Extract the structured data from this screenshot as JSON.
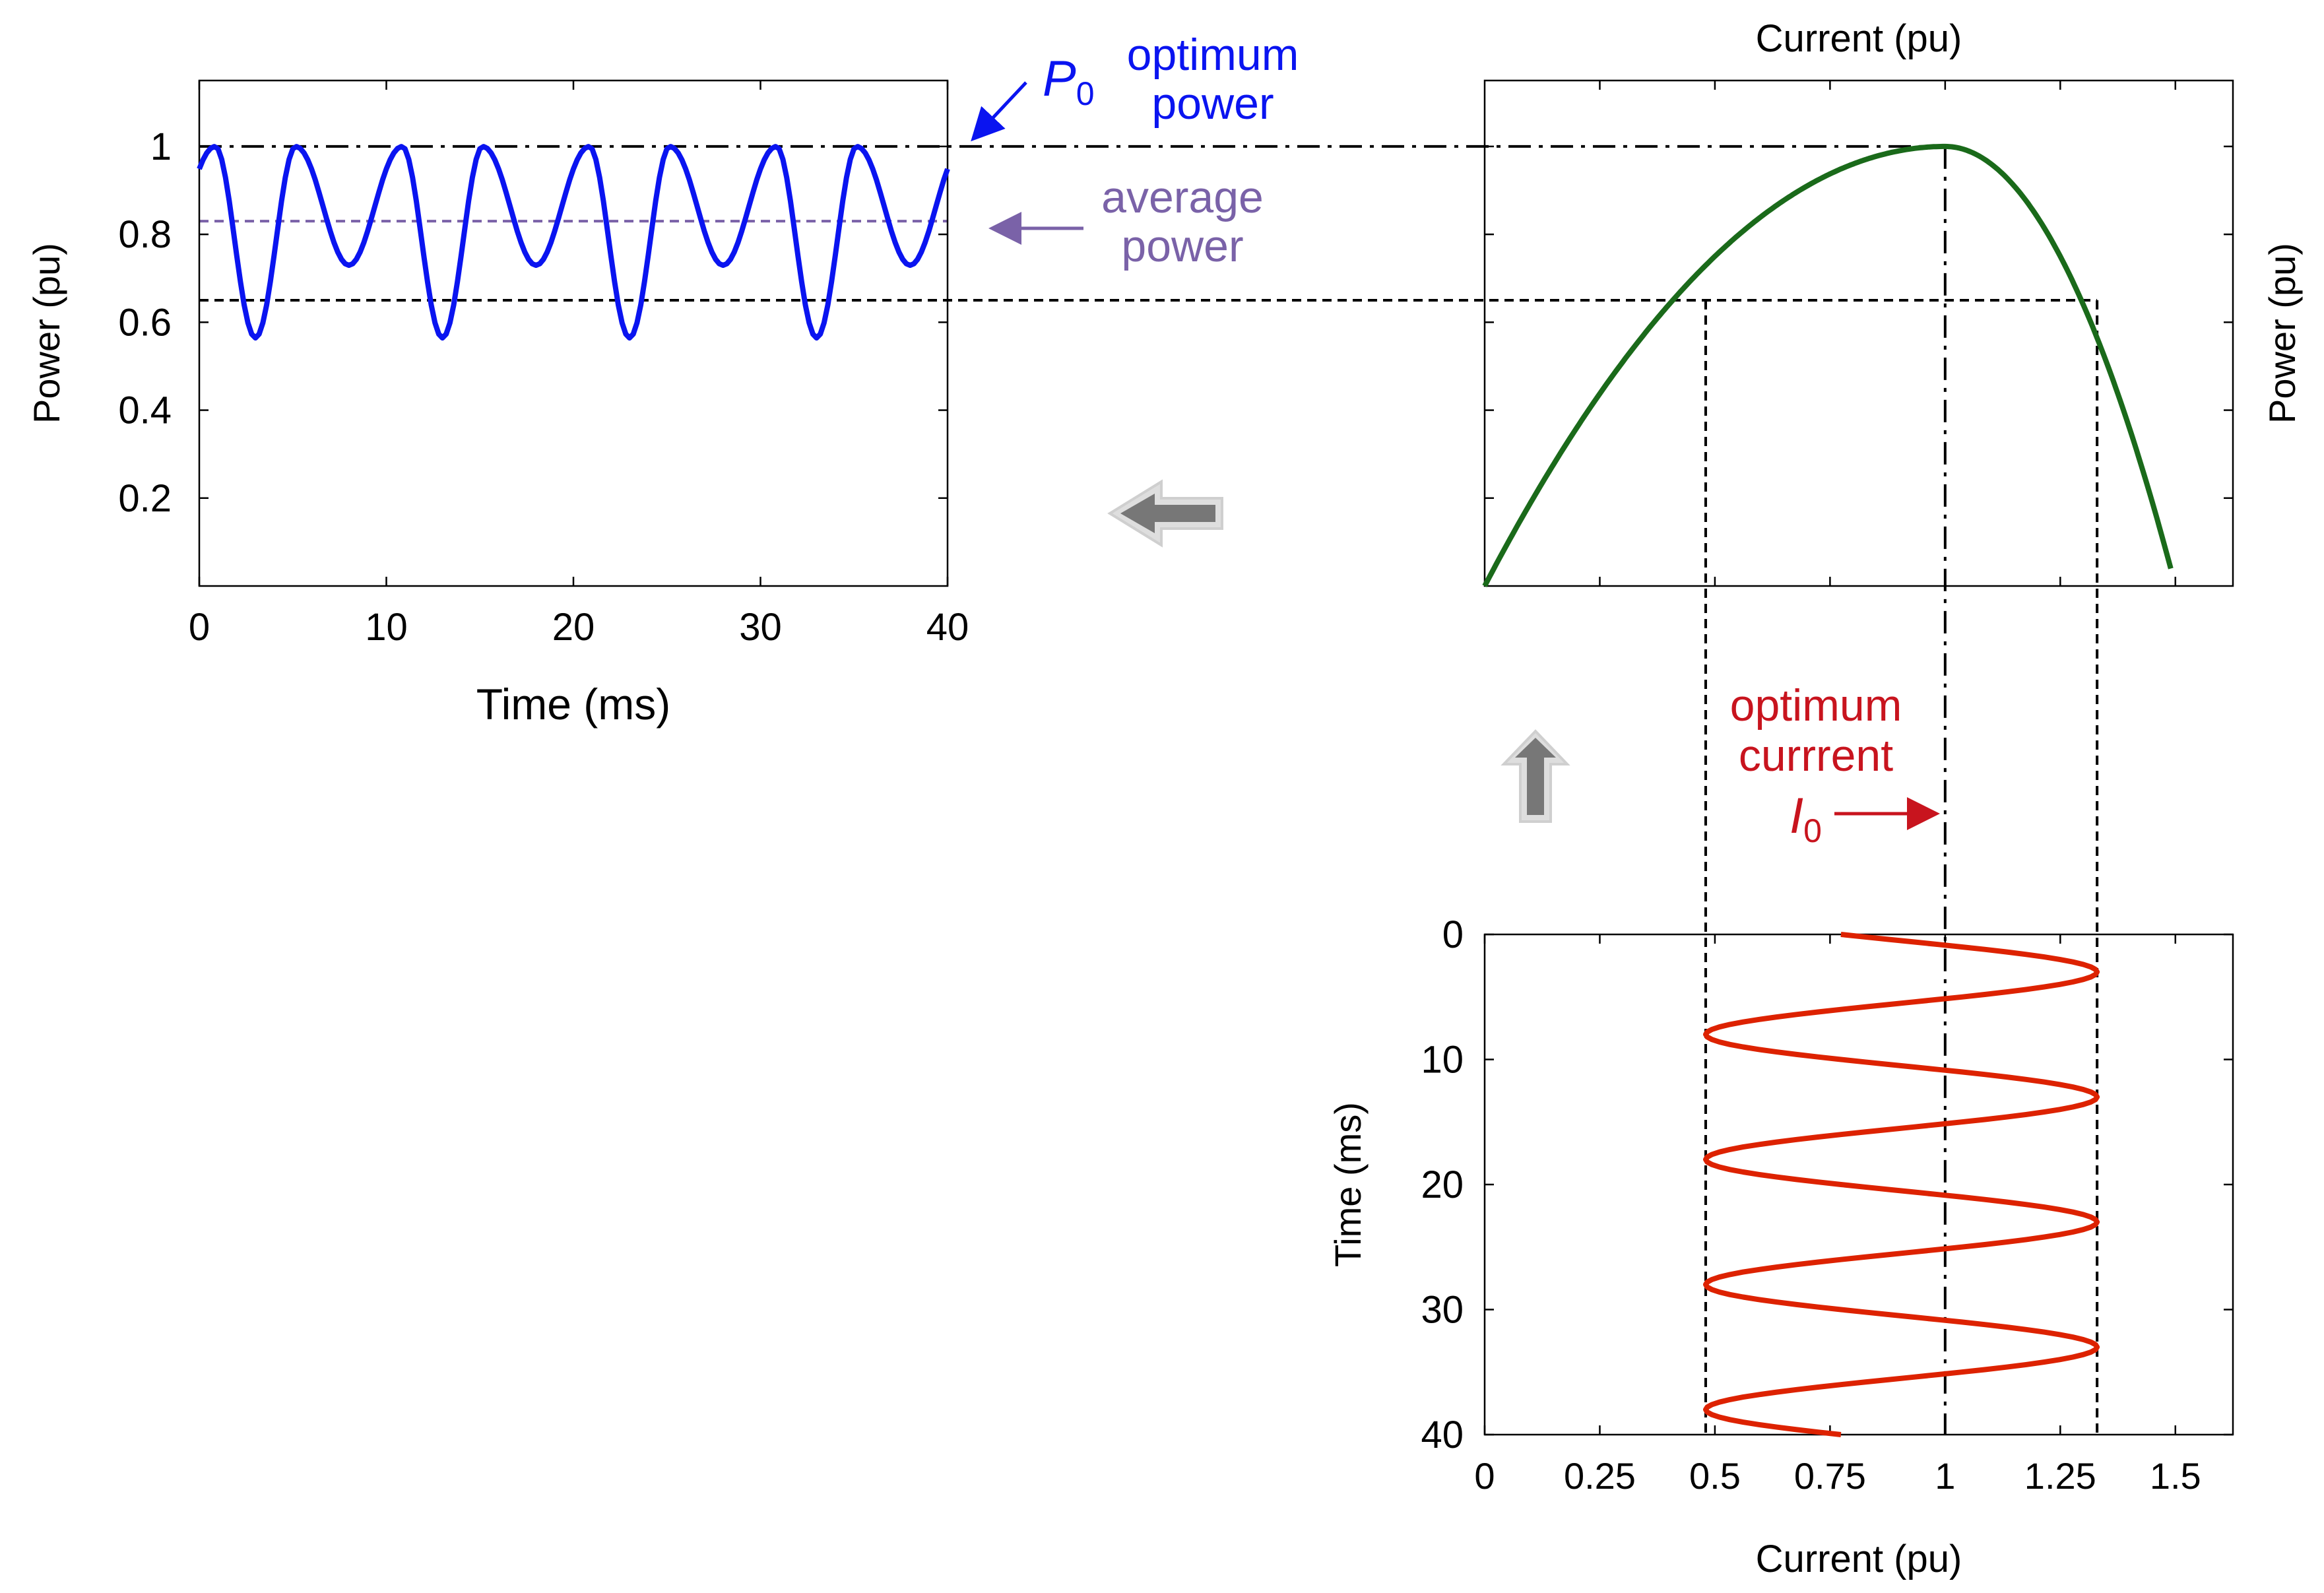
{
  "colors": {
    "power_wave": "#0a14f0",
    "pv_curve": "#1a6a1a",
    "current_wave": "#dd2200",
    "average_line": "#7a62a8",
    "optimum_current_text": "#c8141e",
    "optimum_power_text": "#0a14f0",
    "arrow_gray": "#777777",
    "ref_lines": "#000000"
  },
  "chart_data": [
    {
      "id": "power_vs_time",
      "type": "line",
      "title": "",
      "xlabel": "Time (ms)",
      "ylabel": "Power (pu)",
      "xlim": [
        0,
        40
      ],
      "ylim": [
        0,
        1.15
      ],
      "xticks": [
        0,
        10,
        20,
        30,
        40
      ],
      "yticks": [
        0.2,
        0.4,
        0.6,
        0.8,
        1
      ],
      "xtick_labels": [
        "0",
        "10",
        "20",
        "30",
        "40"
      ],
      "ytick_labels": [
        "0.2",
        "0.4",
        "0.6",
        "0.8",
        "1"
      ],
      "series": [
        {
          "name": "power",
          "color": "#0a14f0",
          "x_range": [
            0,
            40
          ],
          "sample_step": 0.2,
          "model": "pv_of_current",
          "period_ms": 10,
          "sine_phase_offset_ms": 0.5
        }
      ],
      "reference_lines": [
        {
          "name": "optimum power level",
          "y": 1.0,
          "style": "dashdot"
        },
        {
          "name": "average power level",
          "y": 0.83,
          "style": "dashed",
          "color": "#7a62a8"
        },
        {
          "name": "minimum power level",
          "y": 0.65,
          "style": "dashed"
        }
      ],
      "annotations": {
        "p0_symbol": "P",
        "p0_subscript": "0",
        "optimum_line1": "optimum",
        "optimum_line2": "power",
        "average_line1": "average",
        "average_line2": "power"
      }
    },
    {
      "id": "power_vs_current",
      "type": "line",
      "title": "Current (pu)",
      "xlabel": "",
      "ylabel": "Power (pu)",
      "xlim": [
        0,
        1.625
      ],
      "ylim": [
        0,
        1.15
      ],
      "xticks": [
        0.25,
        0.5,
        0.75,
        1,
        1.25,
        1.5
      ],
      "yticks": [
        0.2,
        0.4,
        0.6,
        0.8,
        1
      ],
      "series": [
        {
          "name": "power-current curve",
          "color": "#1a6a1a",
          "x_range": [
            0,
            1.49
          ],
          "model": "pv_curve",
          "peak_current": 1.0,
          "left_width": 1.0,
          "right_width": 0.5
        }
      ],
      "reference_points": {
        "min_current": 0.48,
        "max_current": 1.33,
        "optimum_current": 1.0,
        "min_power": 0.65,
        "optimum_power": 1.0
      }
    },
    {
      "id": "time_vs_current",
      "type": "line",
      "title": "",
      "xlabel": "Current (pu)",
      "ylabel": "Time (ms)",
      "xlim": [
        0,
        1.625
      ],
      "ylim": [
        40,
        0
      ],
      "xticks": [
        0,
        0.25,
        0.5,
        0.75,
        1,
        1.25,
        1.5
      ],
      "yticks": [
        0,
        10,
        20,
        30,
        40
      ],
      "xtick_labels": [
        "0",
        "0.25",
        "0.5",
        "0.75",
        "1",
        "1.25",
        "1.5"
      ],
      "ytick_labels": [
        "0",
        "10",
        "20",
        "30",
        "40"
      ],
      "series": [
        {
          "name": "current",
          "color": "#dd2200",
          "t_range": [
            0,
            40
          ],
          "sample_step": 0.2,
          "mean_current": 0.905,
          "amplitude": 0.425,
          "period_ms": 10,
          "sine_phase_offset_ms": 0.5
        }
      ],
      "annotations": {
        "optimum_line1": "optimum",
        "optimum_line2": "currrent",
        "i0_symbol": "I",
        "i0_subscript": "0"
      }
    }
  ]
}
